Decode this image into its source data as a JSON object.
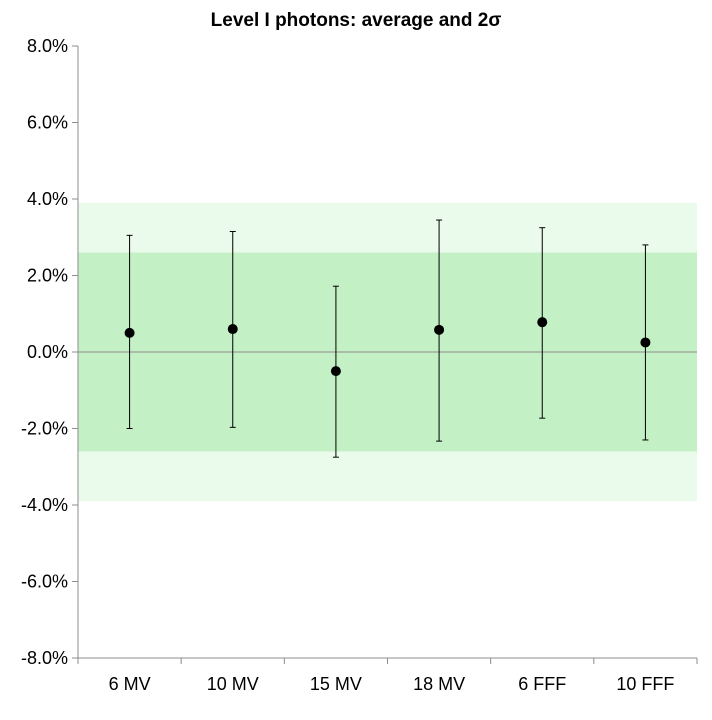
{
  "chart_data": {
    "type": "scatter",
    "title": "Level I photons: average and 2σ",
    "xlabel": "",
    "ylabel": "",
    "categories": [
      "6 MV",
      "10 MV",
      "15 MV",
      "18 MV",
      "6 FFF",
      "10 FFF"
    ],
    "series": [
      {
        "values": [
          0.5,
          0.6,
          -0.5,
          0.58,
          0.78,
          0.25
        ],
        "error_low": [
          -2.0,
          -1.97,
          -2.75,
          -2.33,
          -1.73,
          -2.3
        ],
        "error_high": [
          3.05,
          3.15,
          1.72,
          3.45,
          3.25,
          2.8
        ]
      }
    ],
    "bands": [
      {
        "from": -3.9,
        "to": 3.9,
        "color": "#ebfbeb"
      },
      {
        "from": -2.6,
        "to": 2.6,
        "color": "#c4f0c6"
      }
    ],
    "ylim": [
      -8.0,
      8.0
    ],
    "yticks": [
      -8.0,
      -6.0,
      -4.0,
      -2.0,
      0.0,
      2.0,
      4.0,
      6.0,
      8.0
    ],
    "ytick_labels": [
      "-8.0%",
      "-6.0%",
      "-4.0%",
      "-2.0%",
      "0.0%",
      "2.0%",
      "4.0%",
      "6.0%",
      "8.0%"
    ],
    "grid": false,
    "legend": "none",
    "colors": {
      "marker": "#000000",
      "axis": "#8c8c8c",
      "zero_line": "#8c8c8c"
    }
  }
}
